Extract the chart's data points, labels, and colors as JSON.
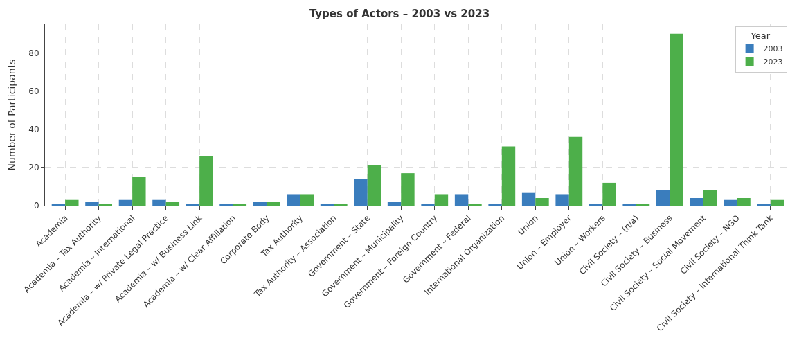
{
  "chart_data": {
    "type": "bar",
    "title": "Types of Actors – 2003 vs 2023",
    "ylabel": "Number of Participants",
    "legend_title": "Year",
    "categories": [
      "Academia",
      "Academia – Tax Authority",
      "Academia – International",
      "Academia – w/ Private Legal Practice",
      "Academia – w/ Business Link",
      "Academia – w/ Clear Affiliation",
      "Corporate Body",
      "Tax Authority",
      "Tax Authority – Association",
      "Government – State",
      "Government – Municipality",
      "Government – Foreign Country",
      "Government – Federal",
      "International Organization",
      "Union",
      "Union – Employer",
      "Union – Workers",
      "Civil Society – (n/a)",
      "Civil Society – Business",
      "Civil Society – Social Movement",
      "Civil Society – NGO",
      "Civil Society – International Think Tank"
    ],
    "series": [
      {
        "name": "2003",
        "color": "#3a7dbd",
        "values": [
          1,
          2,
          3,
          3,
          1,
          1,
          2,
          6,
          1,
          14,
          2,
          1,
          6,
          1,
          7,
          6,
          1,
          1,
          8,
          4,
          3,
          1
        ]
      },
      {
        "name": "2023",
        "color": "#4daf4a",
        "values": [
          3,
          1,
          15,
          2,
          26,
          1,
          2,
          6,
          1,
          21,
          17,
          6,
          1,
          31,
          4,
          36,
          12,
          1,
          90,
          8,
          4,
          3
        ]
      }
    ],
    "ylim": [
      0,
      95
    ],
    "yticks": [
      0,
      20,
      40,
      60,
      80
    ],
    "grid": true,
    "legend": "top right"
  }
}
